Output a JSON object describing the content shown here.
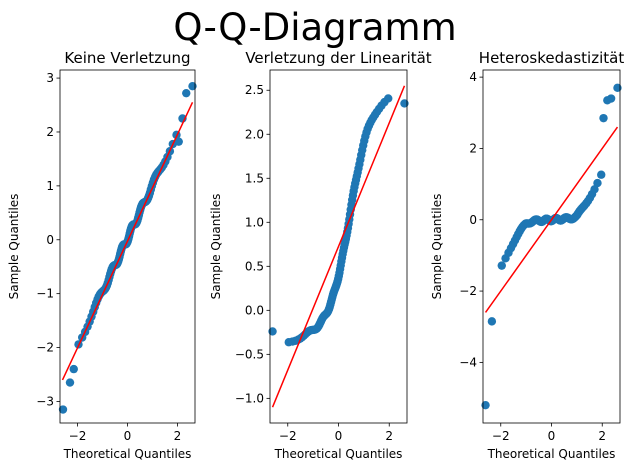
{
  "figure": {
    "suptitle": "Q-Q-Diagramm"
  },
  "colors": {
    "points": "#1f77b4",
    "line": "#ff0000",
    "axes": "#000000"
  },
  "chart_data": [
    {
      "type": "scatter",
      "title": "Keine Verletzung",
      "xlabel": "Theoretical Quantiles",
      "ylabel": "Sample Quantiles",
      "xlim": [
        -2.7,
        2.7
      ],
      "ylim": [
        -3.4,
        3.15
      ],
      "xticks": [
        -2,
        0,
        2
      ],
      "yticks": [
        -3,
        -2,
        -1,
        0,
        1,
        2,
        3
      ],
      "pattern": "linear",
      "x_range": [
        -2.6,
        2.6
      ],
      "n_points": 100,
      "reference_line": {
        "x": [
          -2.6,
          2.6
        ],
        "y": [
          -2.6,
          2.55
        ]
      },
      "outliers": [
        {
          "x": -2.58,
          "y": -3.15
        },
        {
          "x": -2.3,
          "y": -2.65
        },
        {
          "x": -2.15,
          "y": -2.4
        },
        {
          "x": 2.05,
          "y": 1.82
        },
        {
          "x": 2.2,
          "y": 2.25
        },
        {
          "x": 2.35,
          "y": 2.72
        },
        {
          "x": 2.6,
          "y": 2.85
        }
      ]
    },
    {
      "type": "scatter",
      "title": "Verletzung der Linearität",
      "xlabel": "Theoretical Quantiles",
      "ylabel": "Sample Quantiles",
      "xlim": [
        -2.7,
        2.7
      ],
      "ylim": [
        -1.28,
        2.73
      ],
      "xticks": [
        -2,
        0,
        2
      ],
      "yticks": [
        -1.0,
        -0.5,
        0.0,
        0.5,
        1.0,
        1.5,
        2.0,
        2.5
      ],
      "pattern": "s-curve",
      "x_range": [
        -2.6,
        2.6
      ],
      "n_points": 100,
      "reference_line": {
        "x": [
          -2.6,
          2.6
        ],
        "y": [
          -1.1,
          2.55
        ]
      },
      "outliers": [
        {
          "x": -2.6,
          "y": -0.24
        },
        {
          "x": 2.6,
          "y": 2.35
        }
      ]
    },
    {
      "type": "scatter",
      "title": "Heteroskedastizität",
      "xlabel": "Theoretical Quantiles",
      "ylabel": "Sample Quantiles",
      "xlim": [
        -2.7,
        2.7
      ],
      "ylim": [
        -5.7,
        4.2
      ],
      "xticks": [
        -2,
        0,
        2
      ],
      "yticks": [
        -4,
        -2,
        0,
        2,
        4
      ],
      "pattern": "heteroskedastic",
      "x_range": [
        -2.6,
        2.6
      ],
      "n_points": 100,
      "reference_line": {
        "x": [
          -2.6,
          2.6
        ],
        "y": [
          -2.6,
          2.6
        ]
      },
      "outliers": [
        {
          "x": -2.6,
          "y": -5.2
        },
        {
          "x": -2.35,
          "y": -2.85
        },
        {
          "x": 2.05,
          "y": 2.85
        },
        {
          "x": 2.2,
          "y": 3.35
        },
        {
          "x": 2.35,
          "y": 3.4
        },
        {
          "x": 2.6,
          "y": 3.7
        }
      ]
    }
  ]
}
